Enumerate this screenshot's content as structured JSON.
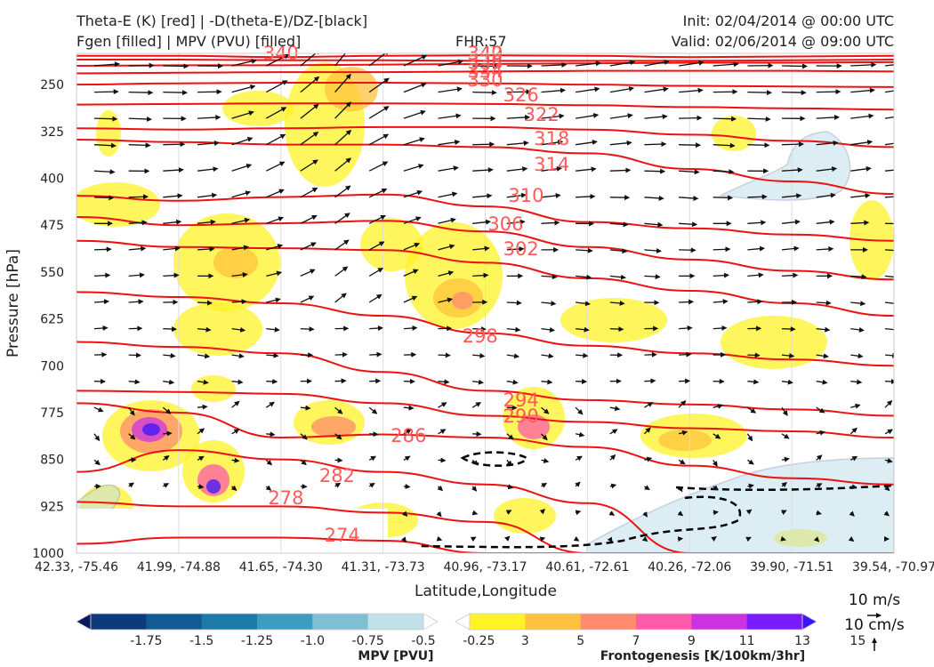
{
  "header": {
    "title_line1": "Theta-E (K) [red] | -D(theta-E)/DZ-[black]",
    "title_line2": "Fgen [filled] | MPV (PVU) [filled]",
    "fhr": "FHR:57",
    "init": "Init: 02/04/2014 @ 00:00 UTC",
    "valid": "Valid: 02/06/2014 @ 09:00 UTC"
  },
  "chart_data": {
    "type": "cross-section",
    "xlabel": "Latitude,Longitude",
    "ylabel": "Pressure [hPa]",
    "ylim": [
      1000,
      200
    ],
    "x_ticks": [
      "42.33, -75.46",
      "41.99, -74.88",
      "41.65, -74.30",
      "41.31, -73.73",
      "40.96, -73.17",
      "40.61, -72.61",
      "40.26, -72.06",
      "39.90, -71.51",
      "39.54, -70.97"
    ],
    "y_ticks": [
      250,
      325,
      400,
      475,
      550,
      625,
      700,
      775,
      850,
      925,
      1000
    ],
    "theta_e_contour_labels": [
      "340",
      "340",
      "342",
      "338",
      "334",
      "330",
      "326",
      "322",
      "318",
      "314",
      "310",
      "306",
      "302",
      "298",
      "294",
      "290",
      "286",
      "282",
      "278",
      "274"
    ],
    "theta_e_lines": [
      {
        "label": "340",
        "p": [
          204,
          204,
          206,
          204,
          203,
          204,
          206,
          205,
          204
        ]
      },
      {
        "label": "338",
        "p": [
          210,
          210,
          211,
          211,
          212,
          212,
          212,
          211,
          210
        ]
      },
      {
        "label": "334",
        "p": [
          220,
          219,
          219,
          218,
          217,
          216,
          215,
          215,
          214
        ]
      },
      {
        "label": "330",
        "p": [
          232,
          231,
          230,
          230,
          229,
          228,
          228,
          228,
          229
        ]
      },
      {
        "label": "326",
        "p": [
          250,
          248,
          247,
          247,
          248,
          250,
          252,
          253,
          254
        ]
      },
      {
        "label": "322",
        "p": [
          282,
          281,
          280,
          280,
          281,
          283,
          286,
          288,
          290
        ]
      },
      {
        "label": "318",
        "p": [
          320,
          322,
          320,
          318,
          318,
          322,
          330,
          340,
          350
        ]
      },
      {
        "label": "314",
        "p": [
          338,
          342,
          346,
          346,
          350,
          360,
          385,
          405,
          425
        ]
      },
      {
        "label": "310",
        "p": [
          428,
          436,
          430,
          426,
          445,
          470,
          480,
          490,
          500
        ]
      },
      {
        "label": "306",
        "p": [
          462,
          475,
          472,
          468,
          485,
          510,
          530,
          548,
          562
        ]
      },
      {
        "label": "302",
        "p": [
          500,
          510,
          512,
          515,
          535,
          560,
          580,
          600,
          620
        ]
      },
      {
        "label": "298",
        "p": [
          582,
          590,
          600,
          620,
          648,
          668,
          680,
          690,
          700
        ]
      },
      {
        "label": "294",
        "p": [
          662,
          670,
          680,
          710,
          740,
          755,
          762,
          770,
          780
        ]
      },
      {
        "label": "290",
        "p": [
          740,
          742,
          745,
          760,
          780,
          790,
          800,
          805,
          815
        ]
      },
      {
        "label": "286",
        "p": [
          760,
          775,
          815,
          810,
          815,
          830,
          860,
          880,
          890
        ]
      },
      {
        "label": "282",
        "p": [
          870,
          835,
          850,
          870,
          890,
          920,
          1000,
          1000,
          1000
        ]
      },
      {
        "label": "278",
        "p": [
          918,
          925,
          925,
          935,
          950,
          1000,
          1000,
          1000,
          1000
        ]
      },
      {
        "label": "274",
        "p": [
          985,
          975,
          975,
          980,
          1000,
          1000,
          1000,
          1000,
          1000
        ]
      }
    ],
    "mpv_colorbar": {
      "label": "MPV [PVU]",
      "ticks": [
        "-1.75",
        "-1.5",
        "-1.25",
        "-1.0",
        "-0.75",
        "-0.5",
        "-0.25"
      ],
      "colors": [
        "#0a1a5e",
        "#0d3a7a",
        "#135a92",
        "#1c7aa8",
        "#3e9cc0",
        "#7fbfd4",
        "#c0e0ea",
        "#ffffff"
      ]
    },
    "fgen_colorbar": {
      "label": "Frontogenesis [K/100km/3hr]",
      "ticks": [
        "3",
        "5",
        "7",
        "9",
        "11",
        "13",
        "15"
      ],
      "colors": [
        "#ffffff",
        "#fff225",
        "#ffc23c",
        "#ff8c6e",
        "#ff5aaa",
        "#cc33e0",
        "#7a1aff",
        "#3a14ff"
      ]
    },
    "wind_reference": {
      "horizontal": "10 m/s",
      "vertical": "10 cm/s"
    }
  }
}
